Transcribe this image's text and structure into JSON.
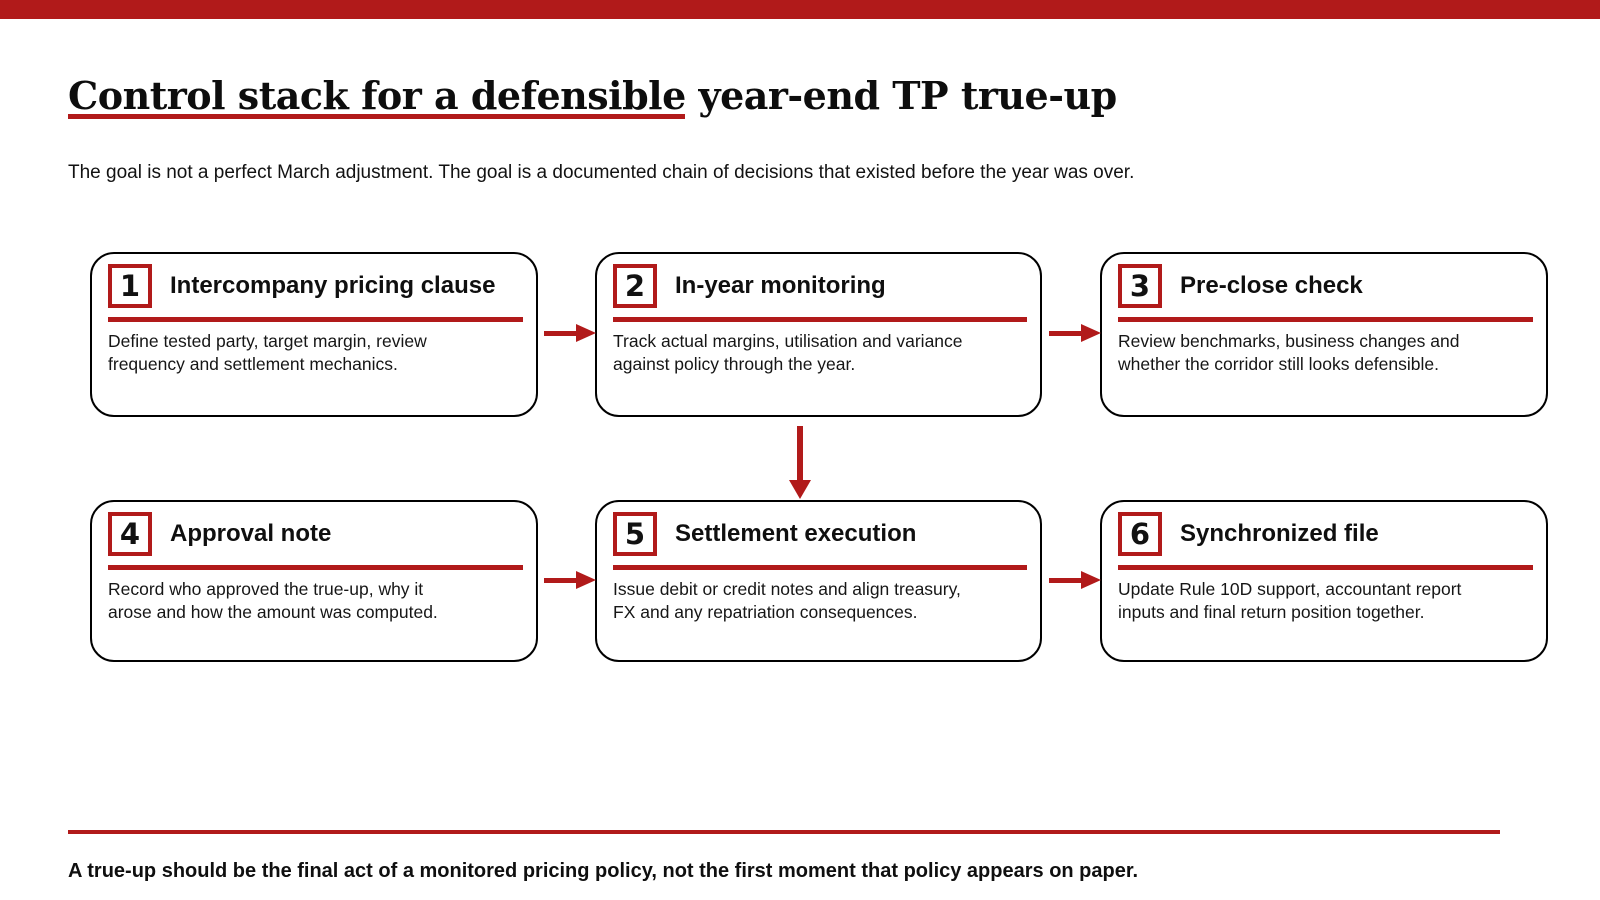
{
  "page": {
    "title": "Control stack for a defensible year-end TP true-up",
    "subtitle": "The goal is not a perfect March adjustment. The goal is a documented chain of decisions that existed before the year was over.",
    "footer_note": "A true-up should be the final act of a monitored pricing policy, not the first moment that policy appears on paper."
  },
  "colors": {
    "accent_red": "#b11a1a",
    "box_border": "#000000",
    "background": "#ffffff",
    "text": "#111111"
  },
  "diagram": {
    "steps": [
      {
        "number": "1",
        "title": "Intercompany pricing clause",
        "description": "Define tested party, target margin, review\nfrequency and settlement mechanics."
      },
      {
        "number": "2",
        "title": "In-year monitoring",
        "description": "Track actual margins, utilisation and variance\nagainst policy through the year."
      },
      {
        "number": "3",
        "title": "Pre-close check",
        "description": "Review benchmarks, business changes and\nwhether the corridor still looks defensible."
      },
      {
        "number": "4",
        "title": "Approval note",
        "description": "Record who approved the true-up, why it\narose and how the amount was computed."
      },
      {
        "number": "5",
        "title": "Settlement execution",
        "description": "Issue debit or credit notes and align treasury,\nFX and any repatriation consequences."
      },
      {
        "number": "6",
        "title": "Synchronized file",
        "description": "Update Rule 10D support, accountant report\ninputs and final return position together."
      }
    ],
    "arrows": [
      {
        "from": "1",
        "to": "2",
        "direction": "right"
      },
      {
        "from": "2",
        "to": "3",
        "direction": "right"
      },
      {
        "from": "2",
        "to": "5",
        "direction": "down"
      },
      {
        "from": "4",
        "to": "5",
        "direction": "right"
      },
      {
        "from": "5",
        "to": "6",
        "direction": "right"
      }
    ]
  }
}
